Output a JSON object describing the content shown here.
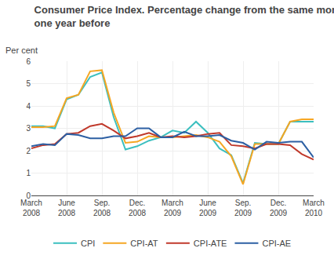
{
  "chart_data": {
    "type": "line",
    "title": "Consumer Price Index. Percentage change from the same month\none year before",
    "ylabel": "Per cent",
    "categories": [
      "March\n2008",
      null,
      null,
      "June\n2008",
      null,
      null,
      "Sep.\n2008",
      null,
      null,
      "Dec.\n2008",
      null,
      null,
      "March\n2009",
      null,
      null,
      "June\n2009",
      null,
      null,
      "Sep.\n2009",
      null,
      null,
      "Dec.\n2009",
      null,
      null,
      "March\n2010"
    ],
    "series": [
      {
        "name": "CPI",
        "color": "#3bbfbf",
        "values": [
          3.1,
          3.1,
          3.0,
          4.3,
          4.5,
          5.3,
          5.5,
          3.5,
          2.05,
          2.2,
          2.45,
          2.6,
          2.9,
          2.8,
          3.3,
          2.8,
          2.1,
          1.8,
          0.55,
          2.35,
          2.3,
          2.3,
          3.3,
          3.3,
          3.3
        ]
      },
      {
        "name": "CPI-AT",
        "color": "#f5a623",
        "values": [
          3.05,
          3.05,
          3.1,
          4.35,
          4.5,
          5.55,
          5.6,
          3.7,
          2.35,
          2.4,
          2.65,
          2.6,
          2.6,
          2.65,
          2.7,
          2.6,
          2.4,
          1.75,
          0.5,
          2.3,
          2.3,
          2.3,
          3.3,
          3.4,
          3.4
        ]
      },
      {
        "name": "CPI-ATE",
        "color": "#c0392b",
        "values": [
          2.1,
          2.25,
          2.3,
          2.75,
          2.8,
          3.1,
          3.2,
          2.9,
          2.55,
          2.65,
          2.8,
          2.6,
          2.65,
          2.6,
          2.65,
          2.75,
          2.8,
          2.25,
          2.2,
          2.1,
          2.3,
          2.3,
          2.25,
          1.85,
          1.6
        ]
      },
      {
        "name": "CPI-AE",
        "color": "#2c5fa3",
        "values": [
          2.2,
          2.3,
          2.25,
          2.75,
          2.7,
          2.55,
          2.55,
          2.65,
          2.65,
          3.0,
          3.0,
          2.6,
          2.6,
          2.85,
          2.65,
          2.65,
          2.7,
          2.45,
          2.35,
          2.05,
          2.4,
          2.35,
          2.4,
          2.4,
          1.7
        ]
      }
    ],
    "ylim": [
      0,
      6
    ],
    "yticks": [
      0,
      1,
      2,
      3,
      4,
      5,
      6
    ],
    "grid": true,
    "legend": "bottom"
  }
}
